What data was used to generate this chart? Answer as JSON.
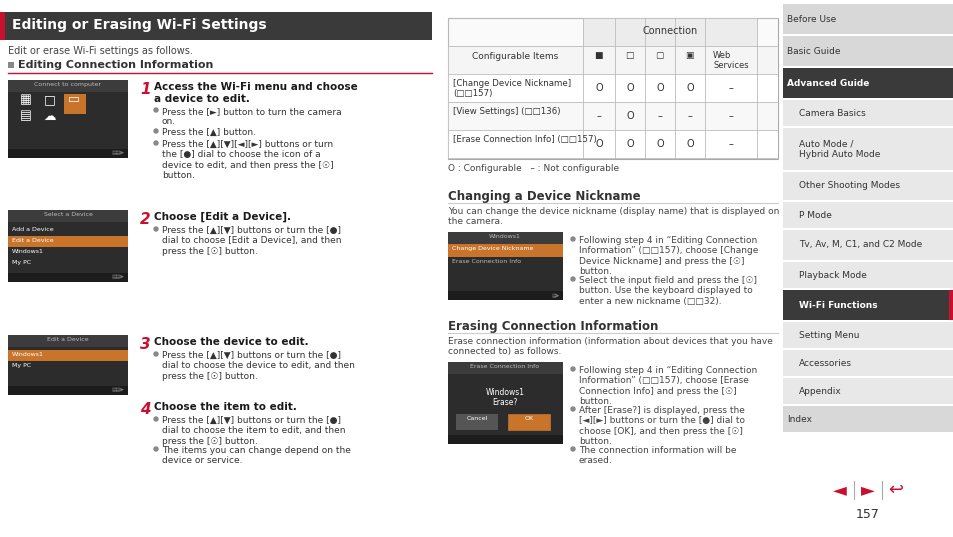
{
  "title": "Editing or Erasing Wi-Fi Settings",
  "subtitle": "Edit or erase Wi-Fi settings as follows.",
  "section1_title": "Editing Connection Information",
  "bg_color": "#ffffff",
  "title_bg": "#3a3a3a",
  "title_color": "#ffffff",
  "accent_red": "#c8102e",
  "section_text_color": "#333333",
  "step_titles": [
    "Access the Wi-Fi menu and choose\na device to edit.",
    "Choose [Edit a Device].",
    "Choose the device to edit.",
    "Choose the item to edit."
  ],
  "step_bullets": [
    [
      "Press the [►] button to turn the camera\non.",
      "Press the [▲] button.",
      "Press the [▲][▼][◄][►] buttons or turn\nthe [●] dial to choose the icon of a\ndevice to edit, and then press the [☉]\nbutton."
    ],
    [
      "Press the [▲][▼] buttons or turn the [●]\ndial to choose [Edit a Device], and then\npress the [☉] button."
    ],
    [
      "Press the [▲][▼] buttons or turn the [●]\ndial to choose the device to edit, and then\npress the [☉] button."
    ],
    [
      "Press the [▲][▼] buttons or turn the [●]\ndial to choose the item to edit, and then\npress the [☉] button.",
      "The items you can change depend on the\ndevice or service."
    ]
  ],
  "table_col_header": "Configurable Items",
  "table_connection_header": "Connection",
  "table_icon_labels": [
    "■︎",
    "□︎",
    "▢︎",
    "▣︎",
    "Web\nServices"
  ],
  "table_rows": [
    {
      "label": "[Change Device Nickname]\n(□□157)",
      "values": [
        "O",
        "O",
        "O",
        "O",
        "–"
      ]
    },
    {
      "label": "[View Settings] (□□136)",
      "values": [
        "–",
        "O",
        "–",
        "–",
        "–"
      ]
    },
    {
      "label": "[Erase Connection Info] (□□157)",
      "values": [
        "O",
        "O",
        "O",
        "O",
        "–"
      ]
    }
  ],
  "table_note": "O : Configurable   – : Not configurable",
  "section2_title": "Changing a Device Nickname",
  "section2_text": "You can change the device nickname (display name) that is displayed on\nthe camera.",
  "section2_bullets": [
    "Following step 4 in “Editing Connection\nInformation” (□□157), choose [Change\nDevice Nickname] and press the [☉]\nbutton.",
    "Select the input field and press the [☉]\nbutton. Use the keyboard displayed to\nenter a new nickname (□□32)."
  ],
  "section3_title": "Erasing Connection Information",
  "section3_text": "Erase connection information (information about devices that you have\nconnected to) as follows.",
  "section3_bullets": [
    "Following step 4 in “Editing Connection\nInformation” (□□157), choose [Erase\nConnection Info] and press the [☉]\nbutton.",
    "After [Erase?] is displayed, press the\n[◄][►] buttons or turn the [●] dial to\nchoose [OK], and then press the [☉]\nbutton.",
    "The connection information will be\nerased."
  ],
  "sidebar_items": [
    {
      "label": "Before Use",
      "bg": "#d8d8d8",
      "fg": "#333333",
      "bold": false,
      "indent": 0,
      "active": false
    },
    {
      "label": "Basic Guide",
      "bg": "#d8d8d8",
      "fg": "#333333",
      "bold": false,
      "indent": 0,
      "active": false
    },
    {
      "label": "Advanced Guide",
      "bg": "#3a3a3a",
      "fg": "#ffffff",
      "bold": true,
      "indent": 0,
      "active": false
    },
    {
      "label": "Camera Basics",
      "bg": "#e8e8e8",
      "fg": "#333333",
      "bold": false,
      "indent": 12,
      "active": false
    },
    {
      "label": "Auto Mode /\nHybrid Auto Mode",
      "bg": "#e8e8e8",
      "fg": "#333333",
      "bold": false,
      "indent": 12,
      "active": false
    },
    {
      "label": "Other Shooting Modes",
      "bg": "#e8e8e8",
      "fg": "#333333",
      "bold": false,
      "indent": 12,
      "active": false
    },
    {
      "label": "P Mode",
      "bg": "#e8e8e8",
      "fg": "#333333",
      "bold": false,
      "indent": 12,
      "active": false
    },
    {
      "label": "Tv, Av, M, C1, and C2 Mode",
      "bg": "#e8e8e8",
      "fg": "#333333",
      "bold": false,
      "indent": 12,
      "active": false
    },
    {
      "label": "Playback Mode",
      "bg": "#e8e8e8",
      "fg": "#333333",
      "bold": false,
      "indent": 12,
      "active": false
    },
    {
      "label": "Wi-Fi Functions",
      "bg": "#3a3a3a",
      "fg": "#ffffff",
      "bold": true,
      "indent": 12,
      "active": true
    },
    {
      "label": "Setting Menu",
      "bg": "#e8e8e8",
      "fg": "#333333",
      "bold": false,
      "indent": 12,
      "active": false
    },
    {
      "label": "Accessories",
      "bg": "#e8e8e8",
      "fg": "#333333",
      "bold": false,
      "indent": 12,
      "active": false
    },
    {
      "label": "Appendix",
      "bg": "#e8e8e8",
      "fg": "#333333",
      "bold": false,
      "indent": 12,
      "active": false
    },
    {
      "label": "Index",
      "bg": "#d8d8d8",
      "fg": "#333333",
      "bold": false,
      "indent": 0,
      "active": false
    }
  ],
  "page_number": "157"
}
